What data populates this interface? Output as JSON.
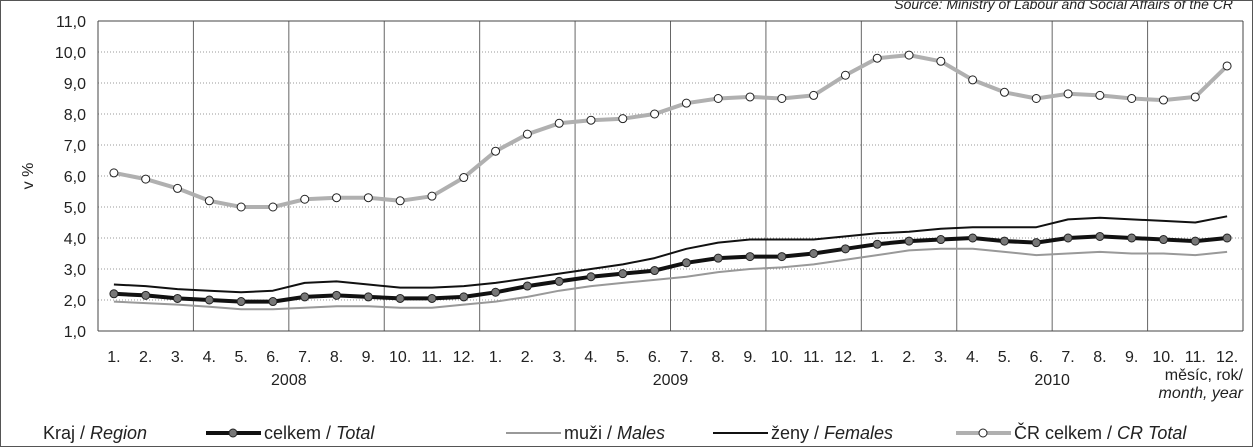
{
  "source": "Source: Ministry of Labour and Social Affairs of the CR",
  "chart_data": {
    "type": "line",
    "ylabel": "v %",
    "xlabel_cz": "měsíc, rok/",
    "xlabel_en": "month, year",
    "ylim": [
      1.0,
      11.0
    ],
    "yticks": [
      "1,0",
      "2,0",
      "3,0",
      "4,0",
      "5,0",
      "6,0",
      "7,0",
      "8,0",
      "9,0",
      "10,0",
      "11,0"
    ],
    "grid": true,
    "legend_position": "bottom",
    "x": [
      "1.",
      "2.",
      "3.",
      "4.",
      "5.",
      "6.",
      "7.",
      "8.",
      "9.",
      "10.",
      "11.",
      "12.",
      "1.",
      "2.",
      "3.",
      "4.",
      "5.",
      "6.",
      "7.",
      "8.",
      "9.",
      "10.",
      "11.",
      "12.",
      "1.",
      "2.",
      "3.",
      "4.",
      "5.",
      "6.",
      "7.",
      "8.",
      "9.",
      "10.",
      "11.",
      "12."
    ],
    "years": [
      {
        "label": "2008",
        "start": 0,
        "end": 11
      },
      {
        "label": "2009",
        "start": 12,
        "end": 23
      },
      {
        "label": "2010",
        "start": 24,
        "end": 35
      }
    ],
    "legend_title": {
      "cz": "Kraj / ",
      "en": "Region"
    },
    "series": [
      {
        "key": "males",
        "name_cz": "muži / ",
        "name_en": "Males",
        "color": "#999999",
        "width": 2,
        "marker": false,
        "values": [
          1.95,
          1.9,
          1.85,
          1.78,
          1.7,
          1.7,
          1.75,
          1.8,
          1.8,
          1.75,
          1.75,
          1.85,
          1.95,
          2.1,
          2.3,
          2.45,
          2.55,
          2.65,
          2.75,
          2.9,
          3.0,
          3.05,
          3.15,
          3.3,
          3.45,
          3.6,
          3.65,
          3.65,
          3.55,
          3.45,
          3.5,
          3.55,
          3.5,
          3.5,
          3.45,
          3.55
        ]
      },
      {
        "key": "females",
        "name_cz": "ženy / ",
        "name_en": "Females",
        "color": "#111111",
        "width": 2,
        "marker": false,
        "values": [
          2.5,
          2.45,
          2.35,
          2.3,
          2.25,
          2.3,
          2.55,
          2.6,
          2.5,
          2.4,
          2.4,
          2.45,
          2.55,
          2.7,
          2.85,
          3.0,
          3.15,
          3.35,
          3.65,
          3.85,
          3.95,
          3.95,
          3.95,
          4.05,
          4.15,
          4.2,
          4.3,
          4.35,
          4.35,
          4.35,
          4.6,
          4.65,
          4.6,
          4.55,
          4.5,
          4.7
        ]
      },
      {
        "key": "total",
        "name_cz": "celkem / ",
        "name_en": "Total",
        "color": "#111111",
        "width": 4,
        "marker": true,
        "marker_fill": "#777777",
        "values": [
          2.2,
          2.15,
          2.05,
          2.0,
          1.95,
          1.95,
          2.1,
          2.15,
          2.1,
          2.05,
          2.05,
          2.1,
          2.25,
          2.45,
          2.6,
          2.75,
          2.85,
          2.95,
          3.2,
          3.35,
          3.4,
          3.4,
          3.5,
          3.65,
          3.8,
          3.9,
          3.95,
          4.0,
          3.9,
          3.85,
          4.0,
          4.05,
          4.0,
          3.95,
          3.9,
          4.0
        ]
      },
      {
        "key": "cr",
        "name_cz": "ČR celkem / ",
        "name_en": "CR Total",
        "color": "#b0b0b0",
        "width": 4,
        "marker": true,
        "marker_fill": "#ffffff",
        "values": [
          6.1,
          5.9,
          5.6,
          5.2,
          5.0,
          5.0,
          5.25,
          5.3,
          5.3,
          5.2,
          5.35,
          5.95,
          6.8,
          7.35,
          7.7,
          7.8,
          7.85,
          8.0,
          8.35,
          8.5,
          8.55,
          8.5,
          8.6,
          9.25,
          9.8,
          9.9,
          9.7,
          9.1,
          8.7,
          8.5,
          8.65,
          8.6,
          8.5,
          8.45,
          8.55,
          9.55
        ]
      }
    ],
    "legend_order": [
      "total",
      "males",
      "females",
      "cr"
    ]
  }
}
